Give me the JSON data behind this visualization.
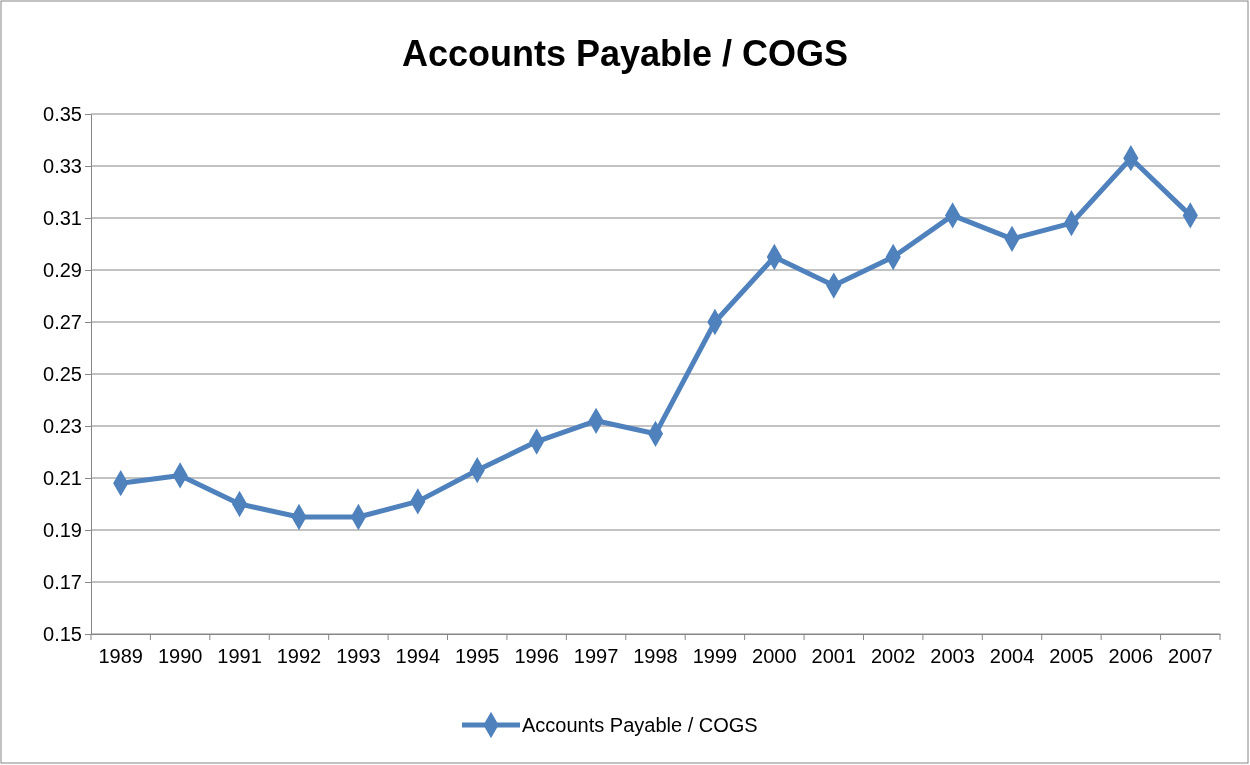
{
  "chart_data": {
    "type": "line",
    "title": "Accounts Payable / COGS",
    "categories": [
      "1989",
      "1990",
      "1991",
      "1992",
      "1993",
      "1994",
      "1995",
      "1996",
      "1997",
      "1998",
      "1999",
      "2000",
      "2001",
      "2002",
      "2003",
      "2004",
      "2005",
      "2006",
      "2007"
    ],
    "series": [
      {
        "name": "Accounts Payable / COGS",
        "color": "#4f81bd",
        "values": [
          0.208,
          0.211,
          0.2,
          0.195,
          0.195,
          0.201,
          0.213,
          0.224,
          0.232,
          0.227,
          0.27,
          0.295,
          0.284,
          0.295,
          0.311,
          0.302,
          0.308,
          0.333,
          0.311
        ]
      }
    ],
    "ylim": [
      0.15,
      0.35
    ],
    "yticks": [
      0.15,
      0.17,
      0.19,
      0.21,
      0.23,
      0.25,
      0.27,
      0.29,
      0.31,
      0.33,
      0.35
    ],
    "grid": "y",
    "legend": "bottom",
    "marker": "diamond",
    "line_style": "solid"
  }
}
